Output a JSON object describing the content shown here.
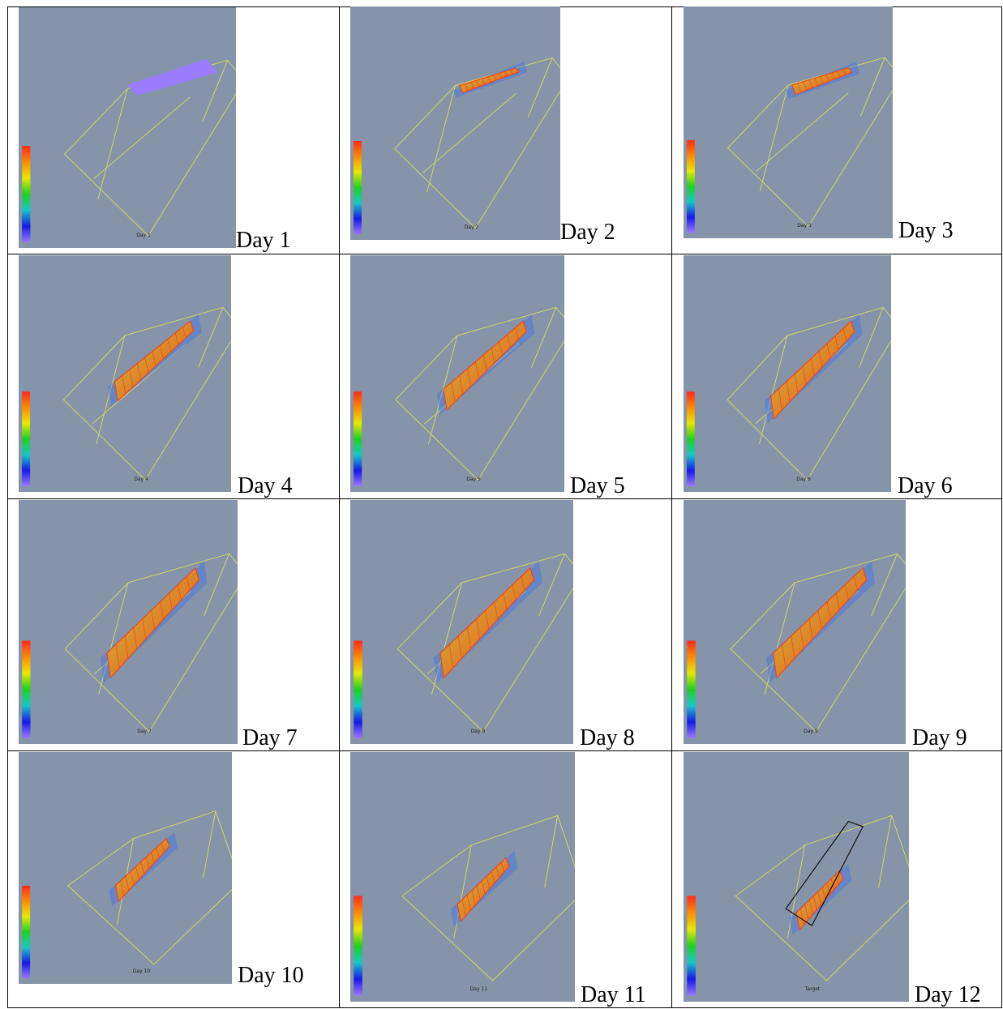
{
  "colors": {
    "background": "#8594a8",
    "wireframe": "#d4dc63",
    "bar_gradient": [
      "#ff2a1a",
      "#ff8a00",
      "#e8e800",
      "#1ed21e",
      "#18c8c8",
      "#1818e8",
      "#9a7cff"
    ]
  },
  "cells": [
    {
      "caption": "Day 1",
      "panel_label": "Day 1",
      "stage": 0
    },
    {
      "caption": "Day 2",
      "panel_label": "Day 2",
      "stage": 1
    },
    {
      "caption": "Day 3",
      "panel_label": "Day 3",
      "stage": 2
    },
    {
      "caption": "Day 4",
      "panel_label": "Day 4",
      "stage": 3
    },
    {
      "caption": "Day 5",
      "panel_label": "Day 5",
      "stage": 4
    },
    {
      "caption": "Day 6",
      "panel_label": "Day 6",
      "stage": 5
    },
    {
      "caption": "Day 7",
      "panel_label": "Day 7",
      "stage": 6
    },
    {
      "caption": "Day 8",
      "panel_label": "Day 8",
      "stage": 7
    },
    {
      "caption": "Day 9",
      "panel_label": "Day 9",
      "stage": 8
    },
    {
      "caption": "Day 10",
      "panel_label": "Day 10",
      "stage": 9
    },
    {
      "caption": "Day 11",
      "panel_label": "Day 11",
      "stage": 10
    },
    {
      "caption": "Day 12",
      "panel_label": "Target",
      "stage": 11
    }
  ]
}
